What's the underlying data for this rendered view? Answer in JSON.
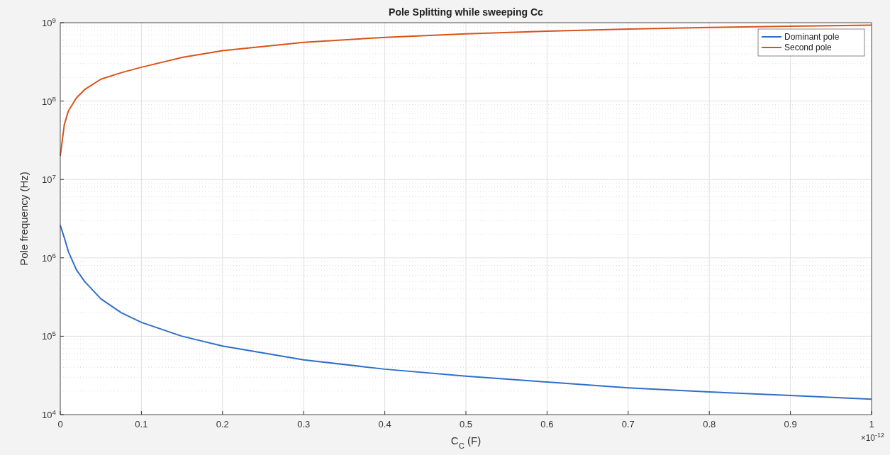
{
  "chart_data": {
    "type": "line",
    "title": "Pole Splitting while sweeping Cc",
    "xlabel": "C$_{C}$ (F)",
    "ylabel": "Pole frequency (Hz)",
    "annotations": [
      "×10$^{-12}$"
    ],
    "x": [
      0,
      0.005,
      0.01,
      0.02,
      0.03,
      0.05,
      0.075,
      0.1,
      0.15,
      0.2,
      0.3,
      0.4,
      0.5,
      0.6,
      0.7,
      0.8,
      0.9,
      1
    ],
    "series": [
      {
        "name": "Dominant pole",
        "color": "#2f6fc9",
        "values": [
          2600000,
          1800000,
          1200000,
          700000,
          500000,
          300000,
          200000,
          150000,
          100000,
          75000,
          50000,
          38000,
          31000,
          26000,
          22000,
          19500,
          17500,
          15700
        ]
      },
      {
        "name": "Second pole",
        "color": "#d95319",
        "values": [
          20000000,
          50000000,
          75000000,
          110000000,
          140000000,
          190000000,
          230000000,
          270000000,
          360000000,
          440000000,
          560000000,
          650000000,
          720000000,
          780000000,
          830000000,
          870000000,
          900000000,
          930000000
        ]
      }
    ],
    "xlim": [
      0,
      1
    ],
    "xticks": [
      0,
      0.1,
      0.2,
      0.3,
      0.4,
      0.5,
      0.6,
      0.7,
      0.8,
      0.9,
      1
    ],
    "ylim": [
      10000,
      1000000000
    ],
    "yticks": [
      {
        "value": 10000,
        "label": "10$^{4}$"
      },
      {
        "value": 100000,
        "label": "10$^{5}$"
      },
      {
        "value": 1000000,
        "label": "10$^{6}$"
      },
      {
        "value": 10000000,
        "label": "10$^{7}$"
      },
      {
        "value": 100000000,
        "label": "10$^{8}$"
      },
      {
        "value": 1000000000,
        "label": "10$^{9}$"
      }
    ],
    "log": "y",
    "grid": true,
    "legend": "top right",
    "line_style": "solid",
    "marker": "none"
  }
}
